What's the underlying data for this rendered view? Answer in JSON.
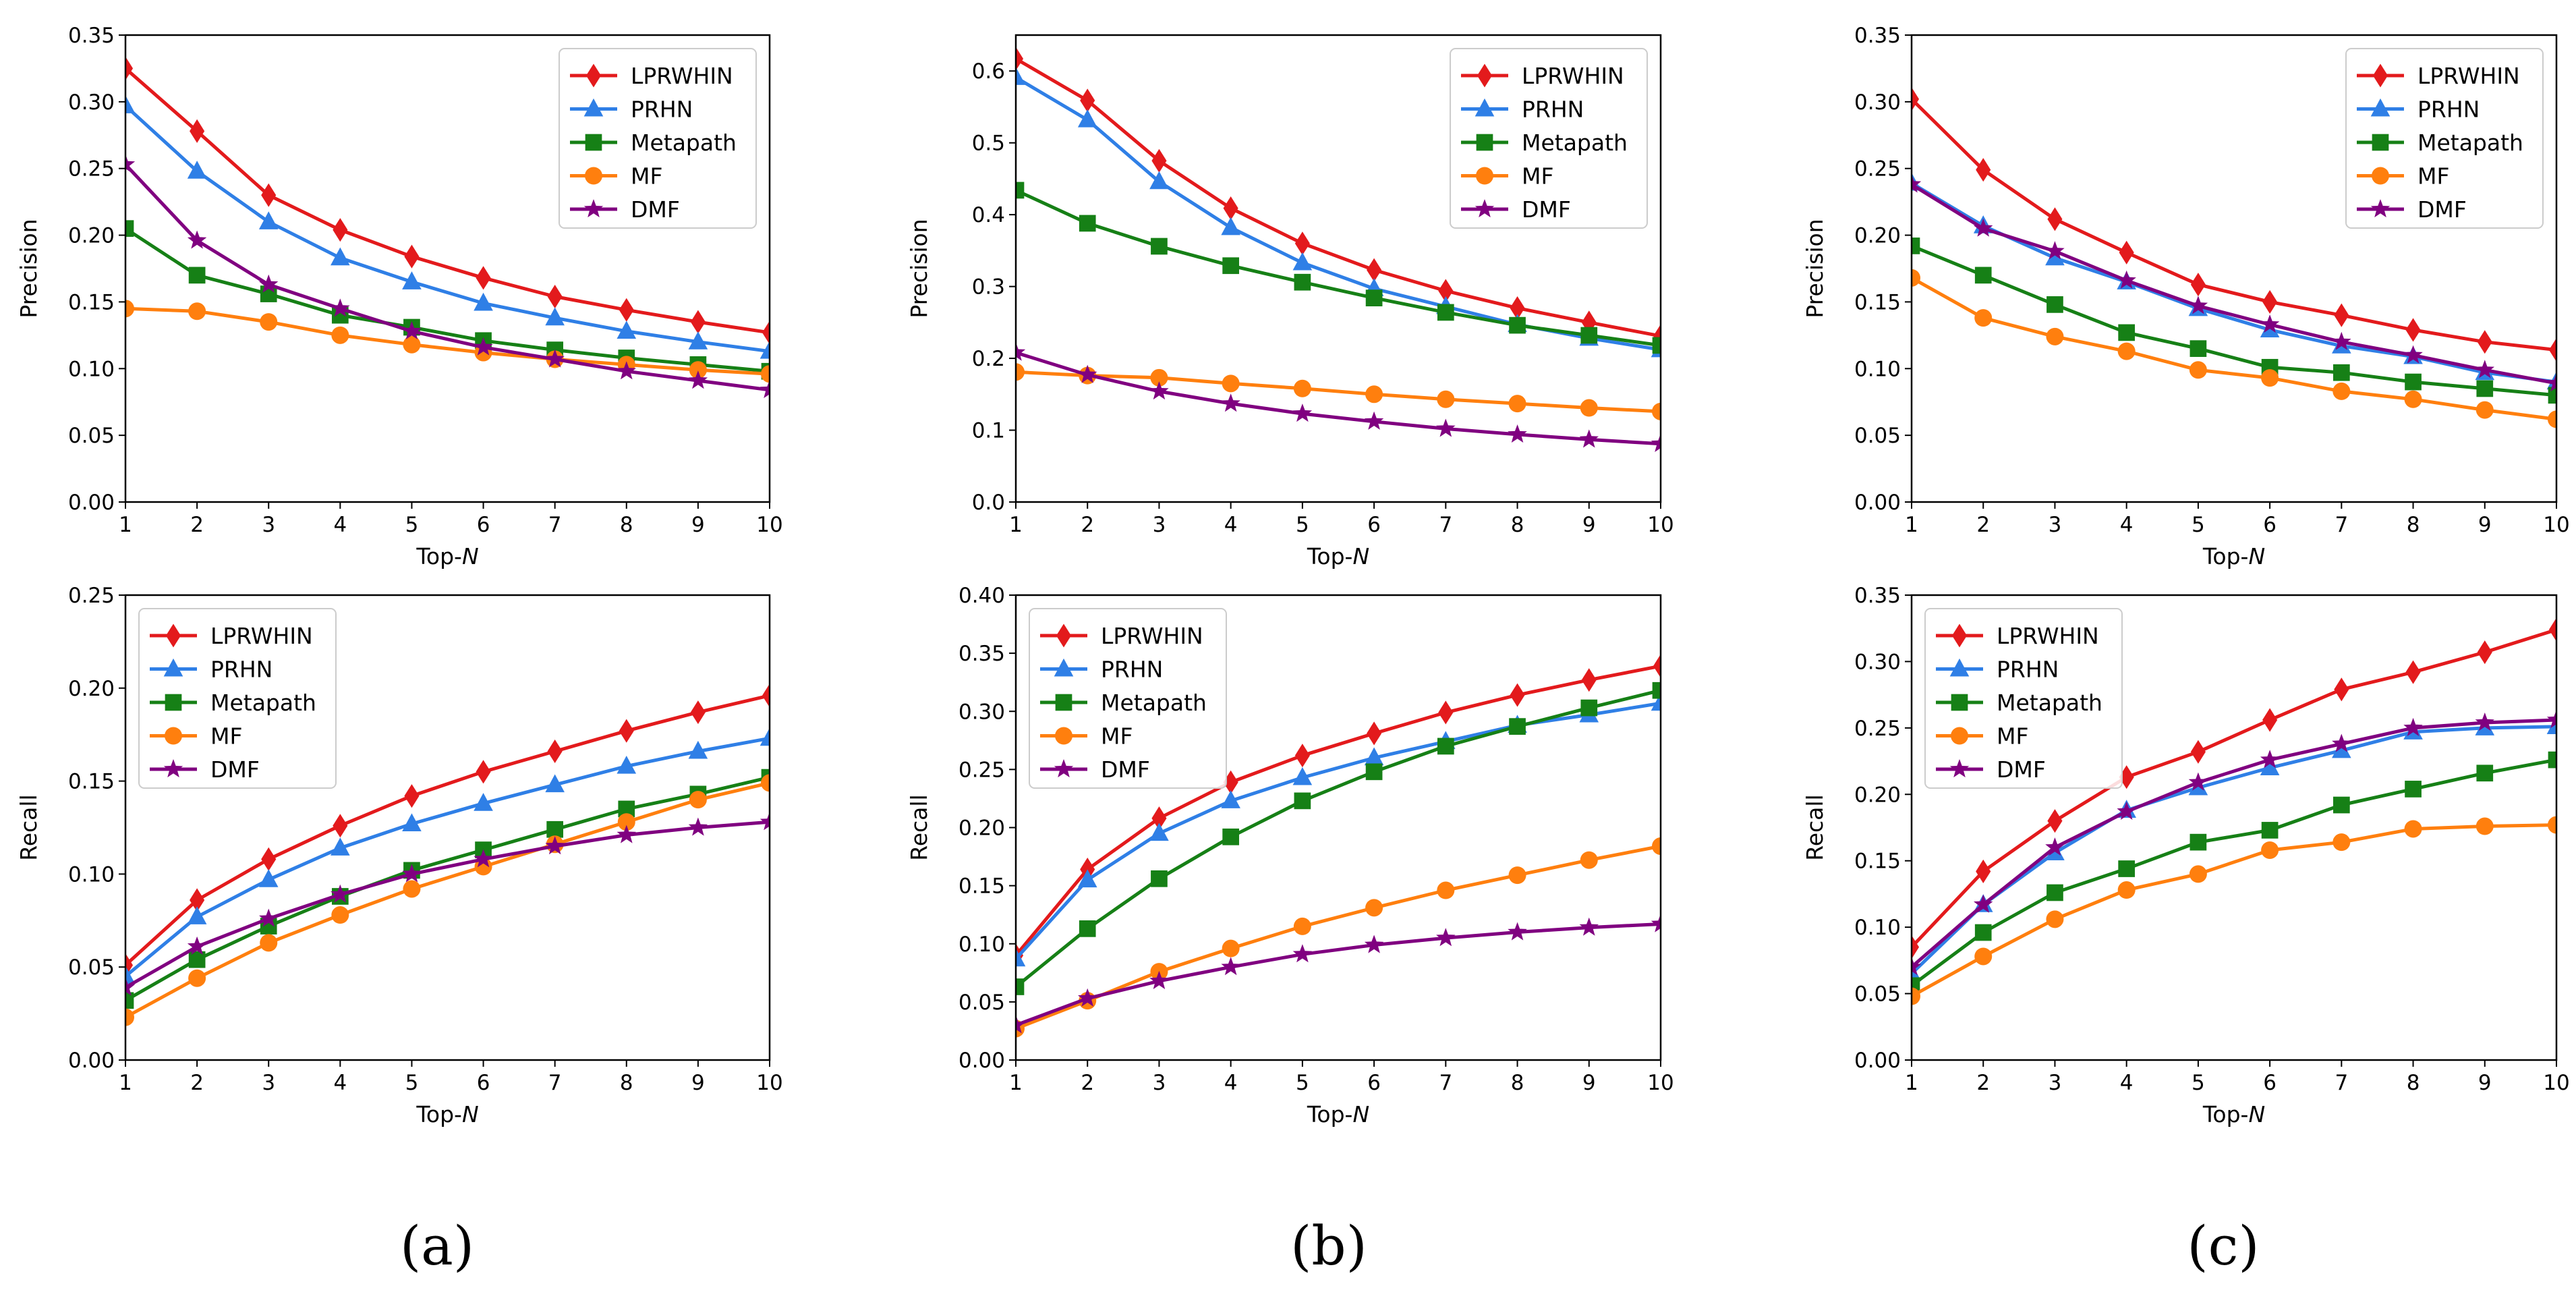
{
  "series_styles": [
    {
      "name": "LPRWHIN",
      "color": "#e31a1c",
      "marker": "diamond"
    },
    {
      "name": "PRHN",
      "color": "#2f7fe6",
      "marker": "triangle"
    },
    {
      "name": "Metapath",
      "color": "#168016",
      "marker": "square"
    },
    {
      "name": "MF",
      "color": "#ff7f0e",
      "marker": "circle"
    },
    {
      "name": "DMF",
      "color": "#800080",
      "marker": "star"
    }
  ],
  "captions": [
    "(a)",
    "(b)",
    "(c)"
  ],
  "chart_data": [
    {
      "type": "line",
      "title": "",
      "xlabel": "Top-",
      "xlabel_italic": "N",
      "ylabel": "Precision",
      "x": [
        1,
        2,
        3,
        4,
        5,
        6,
        7,
        8,
        9,
        10
      ],
      "xlim": [
        1,
        10
      ],
      "ylim": [
        0,
        0.35
      ],
      "yticks": [
        "0.00",
        "0.05",
        "0.10",
        "0.15",
        "0.20",
        "0.25",
        "0.30",
        "0.35"
      ],
      "legend": "top-right",
      "series": [
        {
          "name": "LPRWHIN",
          "values": [
            0.325,
            0.278,
            0.23,
            0.204,
            0.184,
            0.168,
            0.154,
            0.144,
            0.135,
            0.127
          ]
        },
        {
          "name": "PRHN",
          "values": [
            0.297,
            0.248,
            0.21,
            0.183,
            0.165,
            0.149,
            0.138,
            0.128,
            0.12,
            0.113
          ]
        },
        {
          "name": "Metapath",
          "values": [
            0.205,
            0.17,
            0.156,
            0.14,
            0.131,
            0.121,
            0.114,
            0.108,
            0.103,
            0.098
          ]
        },
        {
          "name": "MF",
          "values": [
            0.145,
            0.143,
            0.135,
            0.125,
            0.118,
            0.112,
            0.107,
            0.103,
            0.099,
            0.096
          ]
        },
        {
          "name": "DMF",
          "values": [
            0.253,
            0.196,
            0.163,
            0.145,
            0.128,
            0.116,
            0.107,
            0.098,
            0.091,
            0.084
          ]
        }
      ]
    },
    {
      "type": "line",
      "title": "",
      "xlabel": "Top-",
      "xlabel_italic": "N",
      "ylabel": "Precision",
      "x": [
        1,
        2,
        3,
        4,
        5,
        6,
        7,
        8,
        9,
        10
      ],
      "xlim": [
        1,
        10
      ],
      "ylim": [
        0,
        0.65
      ],
      "yticks": [
        "0.0",
        "0.1",
        "0.2",
        "0.3",
        "0.4",
        "0.5",
        "0.6"
      ],
      "legend": "top-right",
      "series": [
        {
          "name": "LPRWHIN",
          "values": [
            0.617,
            0.559,
            0.475,
            0.409,
            0.36,
            0.323,
            0.294,
            0.27,
            0.25,
            0.231
          ]
        },
        {
          "name": "PRHN",
          "values": [
            0.591,
            0.532,
            0.446,
            0.382,
            0.333,
            0.297,
            0.272,
            0.247,
            0.228,
            0.212
          ]
        },
        {
          "name": "Metapath",
          "values": [
            0.434,
            0.388,
            0.356,
            0.329,
            0.306,
            0.284,
            0.264,
            0.246,
            0.232,
            0.218
          ]
        },
        {
          "name": "MF",
          "values": [
            0.181,
            0.176,
            0.173,
            0.165,
            0.158,
            0.15,
            0.143,
            0.137,
            0.131,
            0.126
          ]
        },
        {
          "name": "DMF",
          "values": [
            0.208,
            0.177,
            0.154,
            0.137,
            0.123,
            0.112,
            0.102,
            0.094,
            0.087,
            0.081
          ]
        }
      ]
    },
    {
      "type": "line",
      "title": "",
      "xlabel": "Top-",
      "xlabel_italic": "N",
      "ylabel": "Precision",
      "x": [
        1,
        2,
        3,
        4,
        5,
        6,
        7,
        8,
        9,
        10
      ],
      "xlim": [
        1,
        10
      ],
      "ylim": [
        0,
        0.35
      ],
      "yticks": [
        "0.00",
        "0.05",
        "0.10",
        "0.15",
        "0.20",
        "0.25",
        "0.30",
        "0.35"
      ],
      "legend": "top-right",
      "series": [
        {
          "name": "LPRWHIN",
          "values": [
            0.302,
            0.249,
            0.212,
            0.187,
            0.163,
            0.15,
            0.14,
            0.129,
            0.12,
            0.114
          ]
        },
        {
          "name": "PRHN",
          "values": [
            0.239,
            0.207,
            0.183,
            0.165,
            0.145,
            0.129,
            0.117,
            0.109,
            0.097,
            0.09
          ]
        },
        {
          "name": "Metapath",
          "values": [
            0.192,
            0.17,
            0.148,
            0.127,
            0.115,
            0.101,
            0.097,
            0.09,
            0.085,
            0.08
          ]
        },
        {
          "name": "MF",
          "values": [
            0.168,
            0.138,
            0.124,
            0.113,
            0.099,
            0.093,
            0.083,
            0.077,
            0.069,
            0.062
          ]
        },
        {
          "name": "DMF",
          "values": [
            0.238,
            0.205,
            0.188,
            0.166,
            0.147,
            0.133,
            0.12,
            0.11,
            0.099,
            0.089
          ]
        }
      ]
    },
    {
      "type": "line",
      "title": "",
      "xlabel": "Top-",
      "xlabel_italic": "N",
      "ylabel": "Recall",
      "x": [
        1,
        2,
        3,
        4,
        5,
        6,
        7,
        8,
        9,
        10
      ],
      "xlim": [
        1,
        10
      ],
      "ylim": [
        0,
        0.25
      ],
      "yticks": [
        "0.00",
        "0.05",
        "0.10",
        "0.15",
        "0.20",
        "0.25"
      ],
      "legend": "top-left",
      "series": [
        {
          "name": "LPRWHIN",
          "values": [
            0.051,
            0.086,
            0.108,
            0.126,
            0.142,
            0.155,
            0.166,
            0.177,
            0.187,
            0.196
          ]
        },
        {
          "name": "PRHN",
          "values": [
            0.045,
            0.077,
            0.097,
            0.114,
            0.127,
            0.138,
            0.148,
            0.158,
            0.166,
            0.173
          ]
        },
        {
          "name": "Metapath",
          "values": [
            0.032,
            0.054,
            0.072,
            0.088,
            0.102,
            0.113,
            0.124,
            0.135,
            0.143,
            0.152
          ]
        },
        {
          "name": "MF",
          "values": [
            0.023,
            0.044,
            0.063,
            0.078,
            0.092,
            0.104,
            0.116,
            0.128,
            0.14,
            0.149
          ]
        },
        {
          "name": "DMF",
          "values": [
            0.039,
            0.061,
            0.076,
            0.089,
            0.1,
            0.108,
            0.115,
            0.121,
            0.125,
            0.128
          ]
        }
      ]
    },
    {
      "type": "line",
      "title": "",
      "xlabel": "Top-",
      "xlabel_italic": "N",
      "ylabel": "Recall",
      "x": [
        1,
        2,
        3,
        4,
        5,
        6,
        7,
        8,
        9,
        10
      ],
      "xlim": [
        1,
        10
      ],
      "ylim": [
        0,
        0.4
      ],
      "yticks": [
        "0.00",
        "0.05",
        "0.10",
        "0.15",
        "0.20",
        "0.25",
        "0.30",
        "0.35",
        "0.40"
      ],
      "legend": "top-left",
      "series": [
        {
          "name": "LPRWHIN",
          "values": [
            0.09,
            0.164,
            0.208,
            0.239,
            0.262,
            0.281,
            0.299,
            0.314,
            0.327,
            0.339
          ]
        },
        {
          "name": "PRHN",
          "values": [
            0.087,
            0.155,
            0.195,
            0.223,
            0.243,
            0.26,
            0.274,
            0.288,
            0.297,
            0.307
          ]
        },
        {
          "name": "Metapath",
          "values": [
            0.063,
            0.113,
            0.156,
            0.192,
            0.223,
            0.248,
            0.27,
            0.287,
            0.303,
            0.318
          ]
        },
        {
          "name": "MF",
          "values": [
            0.027,
            0.051,
            0.076,
            0.096,
            0.115,
            0.131,
            0.146,
            0.159,
            0.172,
            0.184
          ]
        },
        {
          "name": "DMF",
          "values": [
            0.03,
            0.053,
            0.068,
            0.08,
            0.091,
            0.099,
            0.105,
            0.11,
            0.114,
            0.117
          ]
        }
      ]
    },
    {
      "type": "line",
      "title": "",
      "xlabel": "Top-",
      "xlabel_italic": "N",
      "ylabel": "Recall",
      "x": [
        1,
        2,
        3,
        4,
        5,
        6,
        7,
        8,
        9,
        10
      ],
      "xlim": [
        1,
        10
      ],
      "ylim": [
        0,
        0.35
      ],
      "yticks": [
        "0.00",
        "0.05",
        "0.10",
        "0.15",
        "0.20",
        "0.25",
        "0.30",
        "0.35"
      ],
      "legend": "top-left",
      "series": [
        {
          "name": "LPRWHIN",
          "values": [
            0.085,
            0.142,
            0.18,
            0.213,
            0.232,
            0.256,
            0.279,
            0.292,
            0.307,
            0.324
          ]
        },
        {
          "name": "PRHN",
          "values": [
            0.065,
            0.117,
            0.156,
            0.188,
            0.205,
            0.22,
            0.233,
            0.247,
            0.25,
            0.251
          ]
        },
        {
          "name": "Metapath",
          "values": [
            0.056,
            0.096,
            0.126,
            0.144,
            0.164,
            0.173,
            0.192,
            0.204,
            0.216,
            0.226
          ]
        },
        {
          "name": "MF",
          "values": [
            0.048,
            0.078,
            0.106,
            0.128,
            0.14,
            0.158,
            0.164,
            0.174,
            0.176,
            0.177
          ]
        },
        {
          "name": "DMF",
          "values": [
            0.07,
            0.117,
            0.16,
            0.187,
            0.209,
            0.226,
            0.238,
            0.25,
            0.254,
            0.256
          ]
        }
      ]
    }
  ]
}
